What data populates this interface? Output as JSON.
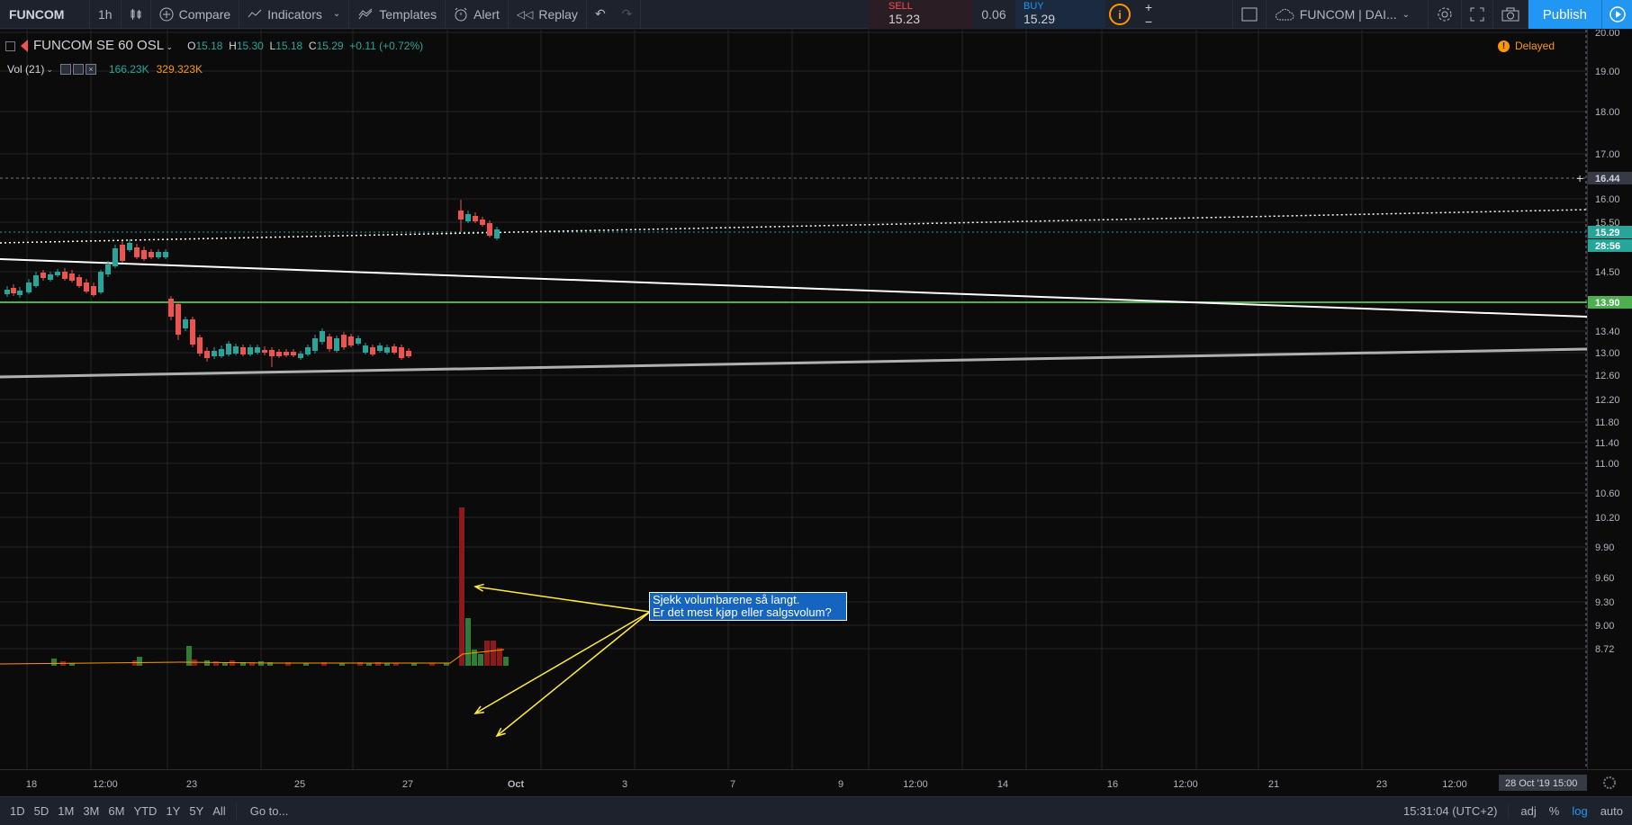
{
  "toolbar": {
    "symbol": "FUNCOM",
    "interval": "1h",
    "compare": "Compare",
    "indicators": "Indicators",
    "templates": "Templates",
    "alert": "Alert",
    "replay": "Replay"
  },
  "trade": {
    "sell_label": "SELL",
    "sell_price": "15.23",
    "spread": "0.06",
    "buy_label": "BUY",
    "buy_price": "15.29",
    "plus": "+",
    "minus": "−"
  },
  "right_tools": {
    "layout_name": "FUNCOM | DAI...",
    "publish": "Publish"
  },
  "legend": {
    "title": "FUNCOM SE",
    "interval": "60",
    "exchange": "OSL",
    "o_label": "O",
    "o": "15.18",
    "h_label": "H",
    "h": "15.30",
    "l_label": "L",
    "l": "15.18",
    "c_label": "C",
    "c": "15.29",
    "change": "+0.11 (+0.72%)",
    "vol_label": "Vol (21)",
    "vol_value": "166.23K",
    "vol_ma": "329.323K"
  },
  "status": {
    "delayed": "Delayed"
  },
  "note": {
    "line1": "Sjekk volumbarene så langt.",
    "line2": "Er det mest kjøp eller salgsvolum?"
  },
  "price_axis": {
    "ticks": [
      "20.00",
      "19.00",
      "18.00",
      "17.00",
      "16.00",
      "15.50",
      "14.50",
      "13.40",
      "13.00",
      "12.60",
      "12.20",
      "11.80",
      "11.40",
      "11.00",
      "10.60",
      "10.20",
      "9.90",
      "9.60",
      "9.30",
      "9.00",
      "8.72"
    ],
    "labels": {
      "crosshair": "16.44",
      "last": "15.29",
      "countdown": "28:56",
      "line": "13.90"
    }
  },
  "time_axis": {
    "ticks": [
      "18",
      "12:00",
      "23",
      "25",
      "27",
      "Oct",
      "3",
      "7",
      "9",
      "12:00",
      "14",
      "16",
      "12:00",
      "21",
      "23",
      "12:00"
    ],
    "crosshair_date": "28 Oct '19",
    "crosshair_time": "15:00"
  },
  "bottom_bar": {
    "ranges": [
      "1D",
      "5D",
      "1M",
      "3M",
      "6M",
      "YTD",
      "1Y",
      "5Y",
      "All"
    ],
    "goto": "Go to...",
    "clock": "15:31:04 (UTC+2)",
    "adj": "adj",
    "percent": "%",
    "log": "log",
    "auto": "auto"
  },
  "colors": {
    "up": "#26a69a",
    "down": "#ef5350",
    "accent": "#2196f3",
    "support_line": "#4caf50",
    "note_bg": "#1565c0",
    "arrow": "#ffeb3b"
  }
}
